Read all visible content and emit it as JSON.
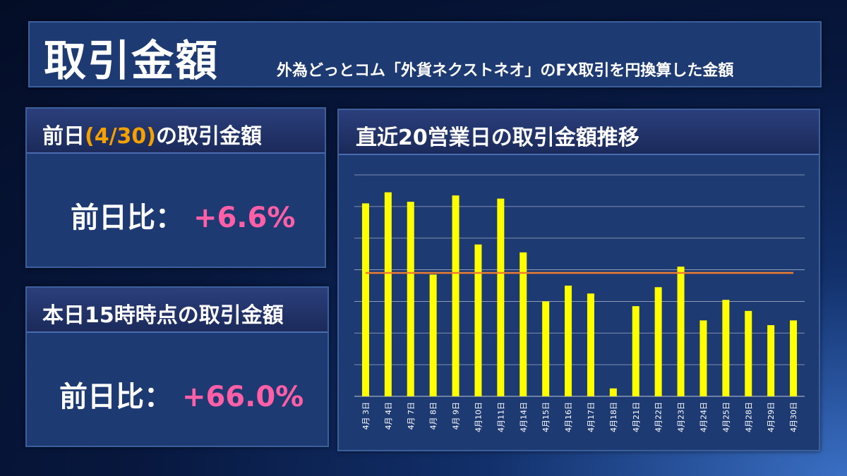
{
  "header": {
    "title": "取引金額",
    "subtitle": "外為どっとコム「外貨ネクストネオ」のFX取引を円換算した金額"
  },
  "prev_day": {
    "title_prefix": "前日",
    "title_date": "(4/30)",
    "title_suffix": "の取引金額",
    "ratio_label": "前日比：",
    "ratio_value": "+6.6%"
  },
  "today": {
    "title": "本日15時時点の取引金額",
    "ratio_label": "前日比：",
    "ratio_value": "+66.0%"
  },
  "colors": {
    "bar": "#ffff00",
    "average_line": "#ed7d31",
    "gridline": "#c0c8d8",
    "ratio": "#ff5fa6",
    "date_highlight": "#f5a100"
  },
  "chart_data": {
    "type": "bar",
    "title": "直近20営業日の取引金額推移",
    "categories": [
      "4月 3日",
      "4月 4日",
      "4月 7日",
      "4月 8日",
      "4月 9日",
      "4月10日",
      "4月11日",
      "4月14日",
      "4月15日",
      "4月16日",
      "4月17日",
      "4月18日",
      "4月21日",
      "4月22日",
      "4月23日",
      "4月24日",
      "4月25日",
      "4月28日",
      "4月29日",
      "4月30日"
    ],
    "series": [
      {
        "name": "取引金額",
        "values": [
          6.1,
          6.45,
          6.15,
          3.85,
          6.35,
          4.8,
          6.25,
          4.55,
          3.0,
          3.5,
          3.25,
          0.25,
          2.85,
          3.45,
          4.1,
          2.4,
          3.05,
          2.7,
          2.25,
          2.4
        ]
      }
    ],
    "average_line": 3.9,
    "ylim": [
      0,
      7
    ],
    "gridlines": 7,
    "xlabel": "",
    "ylabel": "",
    "y_tick_labels_shown": false
  }
}
